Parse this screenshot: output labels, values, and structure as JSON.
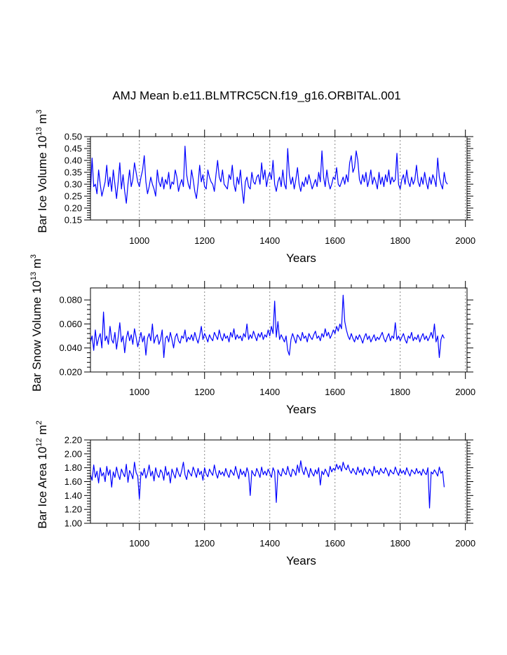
{
  "title": "AMJ Mean b.e11.BLMTRC5CN.f19_g16.ORBITAL.001",
  "chart_data": [
    {
      "type": "line",
      "title": "AMJ Mean b.e11.BLMTRC5CN.f19_g16.ORBITAL.001",
      "ylabel_main": "Bar Ice Volume 10",
      "ylabel_exp": "13",
      "ylabel_unit": "m",
      "ylabel_unit_exp": "3",
      "xlabel": "Years",
      "xlim": [
        850,
        2005
      ],
      "ylim": [
        0.15,
        0.5
      ],
      "xticks": [
        "1000",
        "1200",
        "1400",
        "1600",
        "1800",
        "2000"
      ],
      "yticks": [
        "0.15",
        "0.20",
        "0.25",
        "0.30",
        "0.35",
        "0.40",
        "0.45",
        "0.50"
      ],
      "grid": "vertical dotted",
      "color": "#0000ff",
      "series": [
        {
          "name": "Bar Ice Volume",
          "x_start": 850,
          "x_step": 5,
          "values": [
            0.27,
            0.41,
            0.29,
            0.3,
            0.26,
            0.36,
            0.3,
            0.25,
            0.28,
            0.31,
            0.38,
            0.29,
            0.33,
            0.27,
            0.36,
            0.3,
            0.24,
            0.31,
            0.39,
            0.28,
            0.34,
            0.27,
            0.22,
            0.3,
            0.36,
            0.29,
            0.32,
            0.39,
            0.35,
            0.31,
            0.29,
            0.33,
            0.36,
            0.42,
            0.31,
            0.26,
            0.29,
            0.33,
            0.3,
            0.28,
            0.25,
            0.36,
            0.31,
            0.29,
            0.33,
            0.28,
            0.32,
            0.3,
            0.35,
            0.28,
            0.31,
            0.3,
            0.36,
            0.33,
            0.27,
            0.3,
            0.32,
            0.29,
            0.46,
            0.34,
            0.3,
            0.28,
            0.36,
            0.32,
            0.27,
            0.24,
            0.3,
            0.38,
            0.31,
            0.34,
            0.29,
            0.28,
            0.36,
            0.33,
            0.31,
            0.3,
            0.27,
            0.34,
            0.4,
            0.33,
            0.31,
            0.36,
            0.3,
            0.29,
            0.28,
            0.34,
            0.32,
            0.38,
            0.3,
            0.27,
            0.33,
            0.3,
            0.36,
            0.28,
            0.22,
            0.31,
            0.33,
            0.29,
            0.28,
            0.35,
            0.31,
            0.3,
            0.33,
            0.34,
            0.3,
            0.39,
            0.32,
            0.36,
            0.29,
            0.33,
            0.35,
            0.32,
            0.4,
            0.3,
            0.27,
            0.31,
            0.33,
            0.29,
            0.36,
            0.3,
            0.28,
            0.45,
            0.34,
            0.3,
            0.33,
            0.28,
            0.32,
            0.37,
            0.3,
            0.27,
            0.31,
            0.29,
            0.33,
            0.3,
            0.34,
            0.31,
            0.28,
            0.3,
            0.32,
            0.29,
            0.35,
            0.31,
            0.44,
            0.33,
            0.29,
            0.36,
            0.31,
            0.28,
            0.3,
            0.33,
            0.32,
            0.37,
            0.3,
            0.29,
            0.31,
            0.33,
            0.3,
            0.34,
            0.31,
            0.39,
            0.42,
            0.35,
            0.37,
            0.44,
            0.4,
            0.32,
            0.3,
            0.34,
            0.31,
            0.35,
            0.29,
            0.32,
            0.36,
            0.3,
            0.33,
            0.31,
            0.28,
            0.35,
            0.3,
            0.33,
            0.29,
            0.34,
            0.31,
            0.36,
            0.3,
            0.33,
            0.31,
            0.32,
            0.43,
            0.3,
            0.28,
            0.32,
            0.34,
            0.3,
            0.36,
            0.31,
            0.29,
            0.33,
            0.3,
            0.32,
            0.38,
            0.31,
            0.29,
            0.33,
            0.3,
            0.35,
            0.31,
            0.28,
            0.33,
            0.3,
            0.34,
            0.32,
            0.29,
            0.41,
            0.33,
            0.3,
            0.28,
            0.35,
            0.31,
            0.3
          ]
        }
      ]
    },
    {
      "type": "line",
      "ylabel_main": "Bar Snow Volume 10",
      "ylabel_exp": "13",
      "ylabel_unit": "m",
      "ylabel_unit_exp": "3",
      "xlabel": "Years",
      "xlim": [
        850,
        2005
      ],
      "ylim": [
        0.02,
        0.09
      ],
      "xticks": [
        "1000",
        "1200",
        "1400",
        "1600",
        "1800",
        "2000"
      ],
      "yticks": [
        "0.020",
        "0.040",
        "0.060",
        "0.080"
      ],
      "grid": "vertical dotted",
      "color": "#0000ff",
      "series": [
        {
          "name": "Bar Snow Volume",
          "x_start": 850,
          "x_step": 5,
          "values": [
            0.045,
            0.05,
            0.038,
            0.055,
            0.042,
            0.048,
            0.052,
            0.04,
            0.07,
            0.046,
            0.05,
            0.043,
            0.058,
            0.047,
            0.044,
            0.053,
            0.039,
            0.049,
            0.061,
            0.045,
            0.05,
            0.036,
            0.048,
            0.054,
            0.046,
            0.051,
            0.043,
            0.056,
            0.049,
            0.041,
            0.047,
            0.053,
            0.045,
            0.05,
            0.034,
            0.048,
            0.052,
            0.046,
            0.06,
            0.044,
            0.049,
            0.051,
            0.043,
            0.047,
            0.055,
            0.032,
            0.048,
            0.05,
            0.045,
            0.053,
            0.047,
            0.04,
            0.049,
            0.052,
            0.046,
            0.044,
            0.05,
            0.048,
            0.055,
            0.045,
            0.049,
            0.047,
            0.051,
            0.046,
            0.053,
            0.048,
            0.044,
            0.05,
            0.058,
            0.047,
            0.052,
            0.049,
            0.045,
            0.051,
            0.048,
            0.046,
            0.053,
            0.05,
            0.047,
            0.055,
            0.049,
            0.046,
            0.052,
            0.048,
            0.05,
            0.045,
            0.053,
            0.049,
            0.056,
            0.047,
            0.051,
            0.048,
            0.05,
            0.046,
            0.052,
            0.049,
            0.06,
            0.047,
            0.051,
            0.048,
            0.054,
            0.05,
            0.046,
            0.052,
            0.049,
            0.053,
            0.047,
            0.051,
            0.049,
            0.055,
            0.05,
            0.058,
            0.052,
            0.079,
            0.049,
            0.062,
            0.047,
            0.051,
            0.048,
            0.045,
            0.05,
            0.038,
            0.034,
            0.047,
            0.052,
            0.048,
            0.044,
            0.051,
            0.049,
            0.046,
            0.053,
            0.048,
            0.05,
            0.045,
            0.052,
            0.049,
            0.047,
            0.051,
            0.054,
            0.048,
            0.05,
            0.046,
            0.052,
            0.049,
            0.056,
            0.05,
            0.053,
            0.048,
            0.051,
            0.055,
            0.052,
            0.058,
            0.054,
            0.06,
            0.056,
            0.084,
            0.062,
            0.055,
            0.05,
            0.047,
            0.052,
            0.048,
            0.045,
            0.05,
            0.047,
            0.051,
            0.048,
            0.044,
            0.049,
            0.052,
            0.047,
            0.05,
            0.045,
            0.048,
            0.051,
            0.046,
            0.049,
            0.047,
            0.05,
            0.053,
            0.048,
            0.045,
            0.049,
            0.052,
            0.046,
            0.05,
            0.048,
            0.061,
            0.047,
            0.05,
            0.046,
            0.049,
            0.052,
            0.047,
            0.044,
            0.05,
            0.048,
            0.053,
            0.046,
            0.049,
            0.047,
            0.051,
            0.045,
            0.049,
            0.052,
            0.047,
            0.05,
            0.046,
            0.049,
            0.053,
            0.048,
            0.06,
            0.045,
            0.05,
            0.032,
            0.047,
            0.051,
            0.048
          ]
        }
      ]
    },
    {
      "type": "line",
      "ylabel_main": "Bar Ice Area 10",
      "ylabel_exp": "12",
      "ylabel_unit": "m",
      "ylabel_unit_exp": "2",
      "xlabel": "Years",
      "xlim": [
        850,
        2005
      ],
      "ylim": [
        1.0,
        2.2
      ],
      "xticks": [
        "1000",
        "1200",
        "1400",
        "1600",
        "1800",
        "2000"
      ],
      "yticks": [
        "1.00",
        "1.20",
        "1.40",
        "1.60",
        "1.80",
        "2.00",
        "2.20"
      ],
      "grid": "vertical dotted",
      "color": "#0000ff",
      "series": [
        {
          "name": "Bar Ice Area",
          "x_start": 850,
          "x_step": 5,
          "values": [
            1.7,
            1.62,
            1.84,
            1.66,
            1.75,
            1.58,
            1.8,
            1.68,
            1.73,
            1.6,
            1.82,
            1.69,
            1.77,
            1.52,
            1.74,
            1.66,
            1.81,
            1.7,
            1.63,
            1.78,
            1.72,
            1.67,
            1.85,
            1.59,
            1.76,
            1.71,
            1.64,
            1.88,
            1.73,
            1.68,
            1.35,
            1.74,
            1.69,
            1.79,
            1.65,
            1.72,
            1.84,
            1.68,
            1.75,
            1.61,
            1.8,
            1.7,
            1.66,
            1.77,
            1.73,
            1.62,
            1.82,
            1.69,
            1.74,
            1.58,
            1.78,
            1.71,
            1.65,
            1.8,
            1.72,
            1.67,
            1.76,
            1.88,
            1.7,
            1.63,
            1.77,
            1.72,
            1.68,
            1.81,
            1.74,
            1.66,
            1.79,
            1.7,
            1.75,
            1.62,
            1.8,
            1.71,
            1.67,
            1.78,
            1.73,
            1.69,
            1.84,
            1.72,
            1.65,
            1.76,
            1.7,
            1.74,
            1.68,
            1.79,
            1.71,
            1.66,
            1.77,
            1.73,
            1.69,
            1.82,
            1.72,
            1.64,
            1.78,
            1.7,
            1.75,
            1.67,
            1.8,
            1.72,
            1.4,
            1.76,
            1.71,
            1.68,
            1.79,
            1.73,
            1.66,
            1.81,
            1.7,
            1.75,
            1.69,
            1.78,
            1.72,
            1.66,
            1.8,
            1.74,
            1.3,
            1.77,
            1.71,
            1.68,
            1.79,
            1.73,
            1.7,
            1.82,
            1.72,
            1.67,
            1.78,
            1.75,
            1.69,
            1.84,
            1.73,
            1.9,
            1.76,
            1.7,
            1.81,
            1.74,
            1.66,
            1.79,
            1.72,
            1.68,
            1.77,
            1.71,
            1.8,
            1.55,
            1.75,
            1.7,
            1.78,
            1.73,
            1.67,
            1.82,
            1.74,
            1.79,
            1.76,
            1.85,
            1.78,
            1.83,
            1.75,
            1.88,
            1.8,
            1.77,
            1.84,
            1.76,
            1.72,
            1.79,
            1.74,
            1.7,
            1.81,
            1.73,
            1.77,
            1.69,
            1.8,
            1.74,
            1.71,
            1.78,
            1.75,
            1.68,
            1.82,
            1.73,
            1.76,
            1.7,
            1.79,
            1.74,
            1.72,
            1.8,
            1.75,
            1.68,
            1.77,
            1.73,
            1.71,
            1.81,
            1.74,
            1.69,
            1.78,
            1.72,
            1.76,
            1.7,
            1.8,
            1.73,
            1.68,
            1.77,
            1.74,
            1.71,
            1.79,
            1.72,
            1.75,
            1.69,
            1.78,
            1.73,
            1.7,
            1.8,
            1.22,
            1.74,
            1.71,
            1.77,
            1.73,
            1.68,
            1.81,
            1.72,
            1.75,
            1.52
          ]
        }
      ]
    }
  ]
}
